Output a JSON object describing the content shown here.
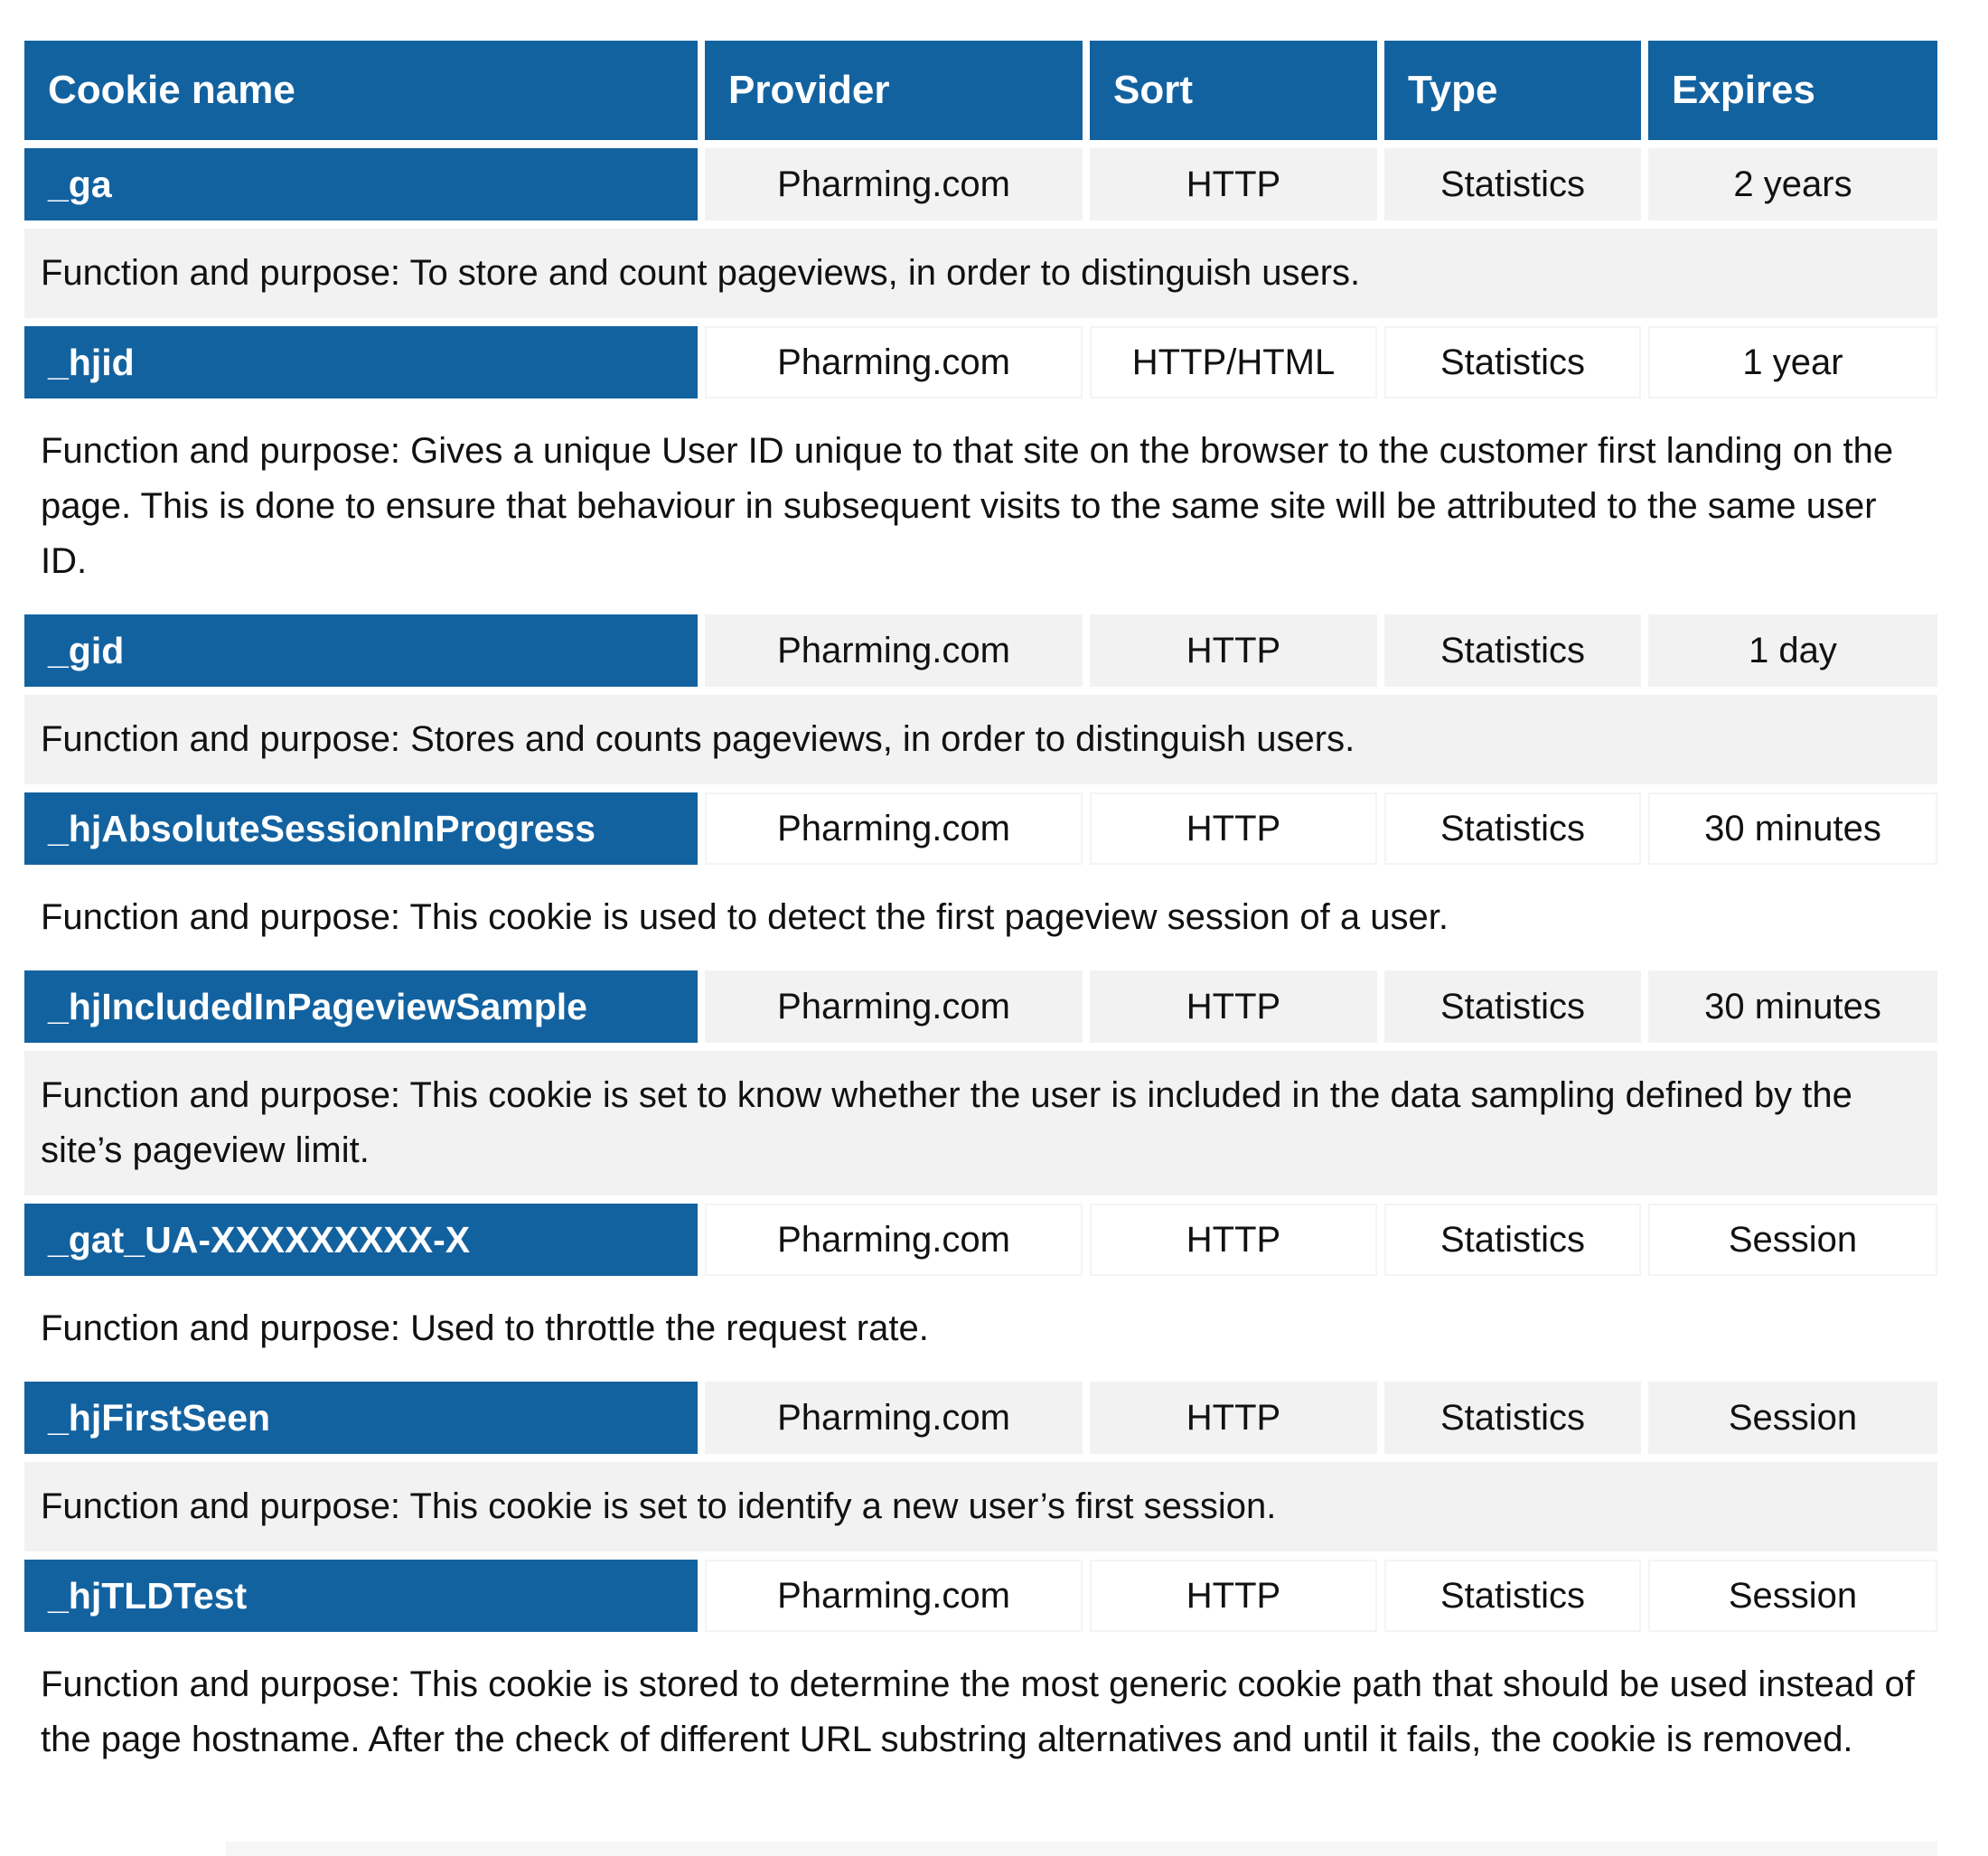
{
  "page": {
    "background": "#FFFFFF"
  },
  "colors": {
    "header_blue": "#1362A0",
    "band_gray": "#F2F2F2",
    "header_text": "#FFFFFF",
    "body_text": "#111111"
  },
  "table": {
    "columns": [
      "Cookie name",
      "Provider",
      "Sort",
      "Type",
      "Expires"
    ],
    "rows": [
      {
        "name": "_ga",
        "provider": "Pharming.com",
        "sort": "HTTP",
        "type": "Statistics",
        "expires": "2 years",
        "band": "gray",
        "function": "Function and purpose: To store and count pageviews, in order to distinguish users."
      },
      {
        "name": "_hjid",
        "provider": "Pharming.com",
        "sort": "HTTP/HTML",
        "type": "Statistics",
        "expires": "1 year",
        "band": "white",
        "function": "Function and purpose: Gives a unique User ID unique to that site on the browser to the customer first landing on the page. This is done to ensure that behaviour in subsequent visits to the same site will be attributed to the same user ID."
      },
      {
        "name": "_gid",
        "provider": "Pharming.com",
        "sort": "HTTP",
        "type": "Statistics",
        "expires": "1 day",
        "band": "gray",
        "function": "Function and purpose: Stores and counts pageviews, in order to distinguish users."
      },
      {
        "name": "_hjAbsoluteSessionInProgress",
        "provider": "Pharming.com",
        "sort": "HTTP",
        "type": "Statistics",
        "expires": "30 minutes",
        "band": "white",
        "function": "Function and purpose: This cookie is used to detect the first pageview session of a user."
      },
      {
        "name": "_hjIncludedInPageviewSample",
        "provider": "Pharming.com",
        "sort": "HTTP",
        "type": "Statistics",
        "expires": "30 minutes",
        "band": "gray",
        "function": "Function and purpose: This cookie is set to know whether the user is included in the data sampling defined by the site’s pageview limit."
      },
      {
        "name": "_gat_UA-XXXXXXXXX-X",
        "provider": "Pharming.com",
        "sort": "HTTP",
        "type": "Statistics",
        "expires": "Session",
        "band": "white",
        "function": "Function and purpose: Used to throttle the request rate."
      },
      {
        "name": "_hjFirstSeen",
        "provider": "Pharming.com",
        "sort": "HTTP",
        "type": "Statistics",
        "expires": "Session",
        "band": "gray",
        "function": "Function and purpose: This cookie is set to identify a new user’s first session."
      },
      {
        "name": "_hjTLDTest",
        "provider": "Pharming.com",
        "sort": "HTTP",
        "type": "Statistics",
        "expires": "Session",
        "band": "white",
        "function": "Function and purpose: This cookie is stored to determine the most generic cookie path that should be used instead of the page hostname. After the check of different URL substring alternatives and until it fails, the cookie is removed."
      }
    ]
  }
}
